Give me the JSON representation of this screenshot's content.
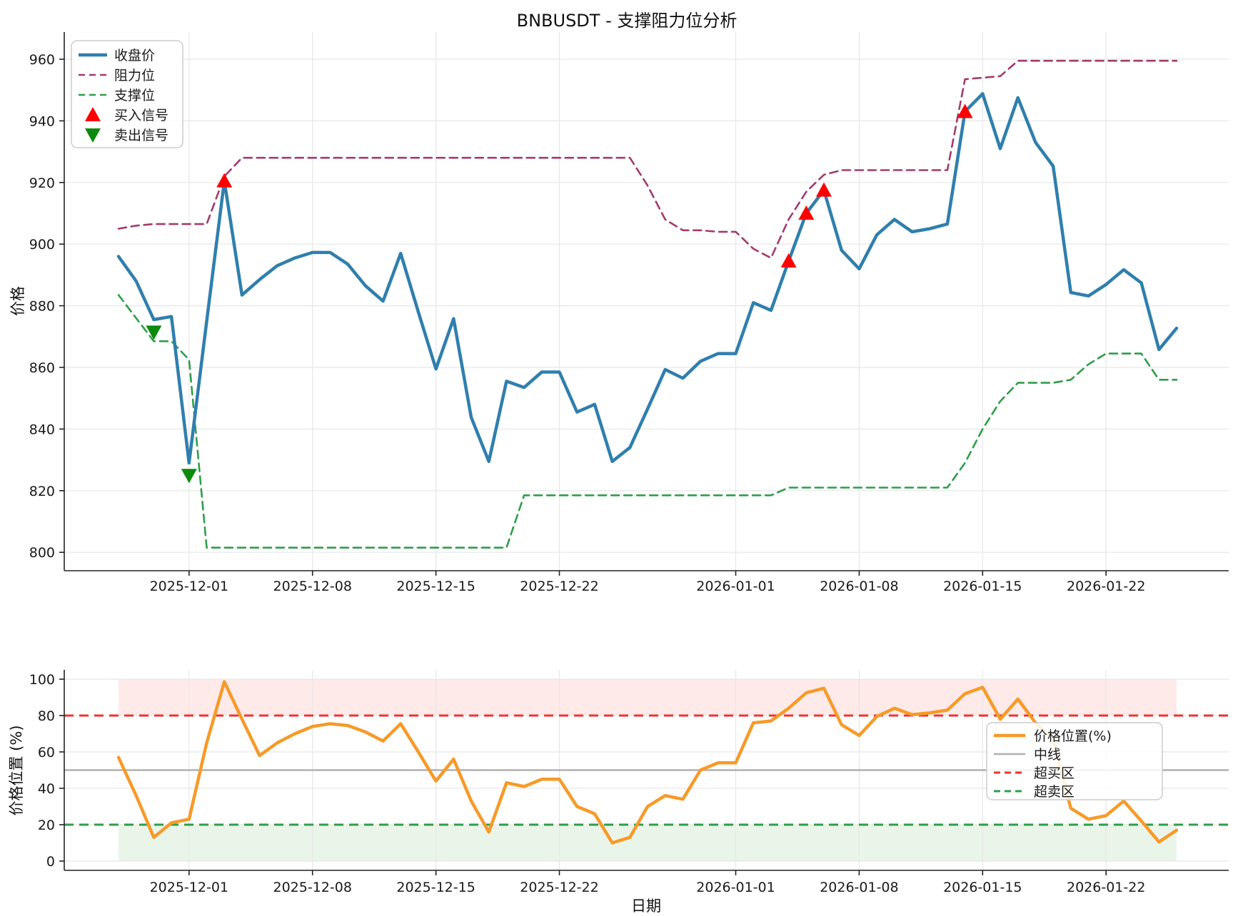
{
  "title": "BNBUSDT - 支撑阻力位分析",
  "colors": {
    "close": "#2f7fad",
    "resistance": "#a23b6e",
    "support": "#2e9e4a",
    "buy": "#fe0000",
    "sell": "#0c8a0c",
    "position": "#f79a28",
    "midline": "#b0b0b0",
    "overbought": "#ee3333",
    "oversold": "#2e9e4a",
    "overbought_fill": "rgba(255,80,80,0.12)",
    "oversold_fill": "rgba(80,170,80,0.12)",
    "grid": "#e7e7e7",
    "spine": "#222222",
    "text": "#1a1a1a",
    "legend_border": "#cccccc"
  },
  "chart_data": [
    {
      "type": "line",
      "title": "BNBUSDT - 支撑阻力位分析",
      "ylabel": "价格",
      "xlabel": "",
      "ylim": [
        796,
        969
      ],
      "yticks": [
        800,
        820,
        840,
        860,
        880,
        900,
        920,
        940,
        960
      ],
      "grid": true,
      "legend_position": "upper left",
      "xtick_labels": [
        "2025-12-01",
        "2025-12-08",
        "2025-12-15",
        "2025-12-22",
        "2026-01-01",
        "2026-01-08",
        "2026-01-15",
        "2026-01-22"
      ],
      "dates": [
        "2025-11-27",
        "2025-11-28",
        "2025-11-29",
        "2025-11-30",
        "2025-12-01",
        "2025-12-02",
        "2025-12-03",
        "2025-12-04",
        "2025-12-05",
        "2025-12-06",
        "2025-12-07",
        "2025-12-08",
        "2025-12-09",
        "2025-12-10",
        "2025-12-11",
        "2025-12-12",
        "2025-12-13",
        "2025-12-14",
        "2025-12-15",
        "2025-12-16",
        "2025-12-17",
        "2025-12-18",
        "2025-12-19",
        "2025-12-20",
        "2025-12-21",
        "2025-12-22",
        "2025-12-23",
        "2025-12-24",
        "2025-12-25",
        "2025-12-26",
        "2025-12-27",
        "2025-12-28",
        "2025-12-29",
        "2025-12-30",
        "2025-12-31",
        "2026-01-01",
        "2026-01-02",
        "2026-01-03",
        "2026-01-04",
        "2026-01-05",
        "2026-01-06",
        "2026-01-07",
        "2026-01-08",
        "2026-01-09",
        "2026-01-10",
        "2026-01-11",
        "2026-01-12",
        "2026-01-13",
        "2026-01-14",
        "2026-01-15",
        "2026-01-16",
        "2026-01-17",
        "2026-01-18",
        "2026-01-19",
        "2026-01-20",
        "2026-01-21",
        "2026-01-22",
        "2026-01-23",
        "2026-01-24",
        "2026-01-25",
        "2026-01-26"
      ],
      "series": [
        {
          "name": "收盘价",
          "style": "solid",
          "color_key": "close",
          "values": [
            896,
            888,
            875.5,
            876.5,
            829,
            875,
            920.5,
            883.5,
            888.5,
            893,
            895.5,
            897.3,
            897.3,
            893.5,
            886.5,
            881.5,
            897,
            878,
            859.5,
            875.8,
            843.8,
            829.5,
            855.5,
            853.5,
            858.5,
            858.5,
            845.5,
            848,
            829.5,
            834,
            846.5,
            859.3,
            856.5,
            862,
            864.5,
            864.5,
            881,
            878.5,
            894.5,
            910,
            917.5,
            898,
            892,
            903,
            908,
            904,
            905,
            906.5,
            943,
            948.8,
            931,
            947.5,
            933,
            925.3,
            884.3,
            883.2,
            886.9,
            891.7,
            887.4,
            865.8,
            872.7
          ]
        },
        {
          "name": "阻力位",
          "style": "dashed",
          "color_key": "resistance",
          "values": [
            905,
            906,
            906.5,
            906.5,
            906.5,
            906.5,
            922,
            928,
            928,
            928,
            928,
            928,
            928,
            928,
            928,
            928,
            928,
            928,
            928,
            928,
            928,
            928,
            928,
            928,
            928,
            928,
            928,
            928,
            928,
            928,
            919,
            908,
            904.5,
            904.5,
            904,
            904,
            898.5,
            895.5,
            908,
            917,
            922.5,
            924,
            924,
            924,
            924,
            924,
            924,
            924,
            953.5,
            954,
            954.5,
            959.5,
            959.5,
            959.5,
            959.5,
            959.5,
            959.5,
            959.5,
            959.5,
            959.5,
            959.5
          ]
        },
        {
          "name": "支撑位",
          "style": "dashed",
          "color_key": "support",
          "values": [
            883.5,
            876,
            868.5,
            868.5,
            862.5,
            801.5,
            801.5,
            801.5,
            801.5,
            801.5,
            801.5,
            801.5,
            801.5,
            801.5,
            801.5,
            801.5,
            801.5,
            801.5,
            801.5,
            801.5,
            801.5,
            801.5,
            801.5,
            818.5,
            818.5,
            818.5,
            818.5,
            818.5,
            818.5,
            818.5,
            818.5,
            818.5,
            818.5,
            818.5,
            818.5,
            818.5,
            818.5,
            818.5,
            821,
            821,
            821,
            821,
            821,
            821,
            821,
            821,
            821,
            821,
            829,
            840,
            849,
            855,
            855,
            855,
            856,
            861,
            864.5,
            864.5,
            864.5,
            856,
            856
          ]
        }
      ],
      "signals": {
        "buy": {
          "label": "买入信号",
          "marker": "triangle-up",
          "color_key": "buy",
          "points": [
            {
              "date": "2025-12-03",
              "price": 920.5
            },
            {
              "date": "2026-01-04",
              "price": 894.5
            },
            {
              "date": "2026-01-05",
              "price": 910
            },
            {
              "date": "2026-01-06",
              "price": 917.5
            },
            {
              "date": "2026-01-14",
              "price": 943
            }
          ]
        },
        "sell": {
          "label": "卖出信号",
          "marker": "triangle-down",
          "color_key": "sell",
          "points": [
            {
              "date": "2025-11-29",
              "price": 875.5
            },
            {
              "date": "2025-12-01",
              "price": 829
            }
          ]
        }
      }
    },
    {
      "type": "line",
      "ylabel": "价格位置 (%)",
      "xlabel": "日期",
      "ylim": [
        -5,
        105
      ],
      "yticks": [
        0,
        20,
        40,
        60,
        80,
        100
      ],
      "grid": true,
      "legend_position": "center right",
      "series": [
        {
          "name": "价格位置(%)",
          "style": "solid",
          "color_key": "position",
          "values": [
            57,
            36,
            13,
            21,
            23,
            65,
            98.6,
            78,
            58,
            65,
            70,
            74,
            75.5,
            74.5,
            71,
            66,
            75.5,
            60,
            44,
            56,
            33,
            16,
            43,
            41,
            45,
            45,
            30,
            26,
            10,
            13,
            30,
            36,
            34,
            50,
            54,
            54,
            76,
            77,
            84,
            92.5,
            95,
            75,
            69,
            79.5,
            84,
            80.5,
            81.5,
            83,
            92,
            95.5,
            78,
            89,
            76,
            67,
            29,
            23,
            25,
            33,
            22,
            10.5,
            17
          ]
        }
      ],
      "reference_lines": [
        {
          "name": "中线",
          "y": 50,
          "style": "solid",
          "color_key": "midline"
        },
        {
          "name": "超买区",
          "y": 80,
          "style": "dashed",
          "color_key": "overbought"
        },
        {
          "name": "超卖区",
          "y": 20,
          "style": "dashed",
          "color_key": "oversold"
        }
      ],
      "bands": [
        {
          "name": "overbought-band",
          "from": 80,
          "to": 100,
          "color_key": "overbought_fill"
        },
        {
          "name": "oversold-band",
          "from": 0,
          "to": 20,
          "color_key": "oversold_fill"
        }
      ]
    }
  ]
}
